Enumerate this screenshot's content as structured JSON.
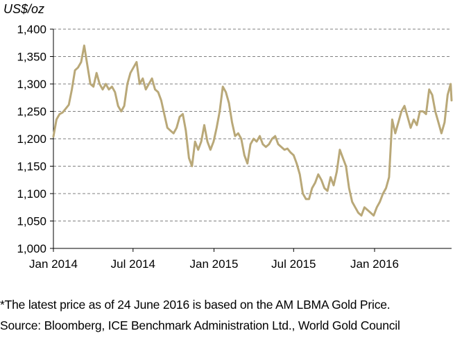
{
  "chart_data": {
    "type": "line",
    "title": "",
    "ylabel": "US$/oz",
    "xlabel": "",
    "ylim": [
      1000,
      1400
    ],
    "y_ticks": [
      1000,
      1050,
      1100,
      1150,
      1200,
      1250,
      1300,
      1350,
      1400
    ],
    "y_tick_labels": [
      "1,000",
      "1,050",
      "1,100",
      "1,150",
      "1,200",
      "1,250",
      "1,300",
      "1,350",
      "1,400"
    ],
    "x_range": [
      "2014-01-01",
      "2016-06-24"
    ],
    "x_ticks": [
      "2014-01-01",
      "2014-07-01",
      "2015-01-01",
      "2015-07-01",
      "2016-01-01"
    ],
    "x_tick_labels": [
      "Jan 2014",
      "Jul 2014",
      "Jan 2015",
      "Jul 2015",
      "Jan 2016"
    ],
    "grid": "horizontal-dashed",
    "line_color": "#B9A878",
    "grid_color": "#7F7F7F",
    "series": [
      {
        "x": [
          "2014-01-01",
          "2014-01-08",
          "2014-01-15",
          "2014-01-22",
          "2014-01-29",
          "2014-02-05",
          "2014-02-12",
          "2014-02-19",
          "2014-02-26",
          "2014-03-05",
          "2014-03-12",
          "2014-03-19",
          "2014-03-26",
          "2014-04-02",
          "2014-04-09",
          "2014-04-16",
          "2014-04-23",
          "2014-04-30",
          "2014-05-07",
          "2014-05-14",
          "2014-05-21",
          "2014-05-28",
          "2014-06-04",
          "2014-06-11",
          "2014-06-18",
          "2014-06-25",
          "2014-07-02",
          "2014-07-09",
          "2014-07-16",
          "2014-07-23",
          "2014-07-30",
          "2014-08-06",
          "2014-08-13",
          "2014-08-20",
          "2014-08-27",
          "2014-09-03",
          "2014-09-10",
          "2014-09-17",
          "2014-09-24",
          "2014-10-01",
          "2014-10-08",
          "2014-10-15",
          "2014-10-22",
          "2014-10-29",
          "2014-11-05",
          "2014-11-12",
          "2014-11-19",
          "2014-11-26",
          "2014-12-03",
          "2014-12-10",
          "2014-12-17",
          "2014-12-24",
          "2014-12-31",
          "2015-01-07",
          "2015-01-14",
          "2015-01-21",
          "2015-01-28",
          "2015-02-04",
          "2015-02-11",
          "2015-02-18",
          "2015-02-25",
          "2015-03-04",
          "2015-03-11",
          "2015-03-18",
          "2015-03-25",
          "2015-04-01",
          "2015-04-08",
          "2015-04-15",
          "2015-04-22",
          "2015-04-29",
          "2015-05-06",
          "2015-05-13",
          "2015-05-20",
          "2015-05-27",
          "2015-06-03",
          "2015-06-10",
          "2015-06-17",
          "2015-06-24",
          "2015-07-01",
          "2015-07-08",
          "2015-07-15",
          "2015-07-22",
          "2015-07-29",
          "2015-08-05",
          "2015-08-12",
          "2015-08-19",
          "2015-08-26",
          "2015-09-02",
          "2015-09-09",
          "2015-09-16",
          "2015-09-23",
          "2015-09-30",
          "2015-10-07",
          "2015-10-14",
          "2015-10-21",
          "2015-10-28",
          "2015-11-04",
          "2015-11-11",
          "2015-11-18",
          "2015-11-25",
          "2015-12-02",
          "2015-12-09",
          "2015-12-16",
          "2015-12-23",
          "2015-12-30",
          "2016-01-06",
          "2016-01-13",
          "2016-01-20",
          "2016-01-27",
          "2016-02-03",
          "2016-02-10",
          "2016-02-17",
          "2016-02-24",
          "2016-03-02",
          "2016-03-09",
          "2016-03-16",
          "2016-03-23",
          "2016-03-30",
          "2016-04-06",
          "2016-04-13",
          "2016-04-20",
          "2016-04-27",
          "2016-05-04",
          "2016-05-11",
          "2016-05-18",
          "2016-05-25",
          "2016-06-01",
          "2016-06-08",
          "2016-06-15",
          "2016-06-22",
          "2016-06-24"
        ],
        "values": [
          1204,
          1235,
          1245,
          1248,
          1255,
          1262,
          1290,
          1325,
          1330,
          1340,
          1370,
          1335,
          1300,
          1295,
          1320,
          1300,
          1290,
          1300,
          1290,
          1295,
          1285,
          1260,
          1250,
          1260,
          1300,
          1320,
          1330,
          1340,
          1300,
          1310,
          1290,
          1300,
          1310,
          1290,
          1285,
          1270,
          1245,
          1220,
          1215,
          1210,
          1220,
          1240,
          1245,
          1215,
          1165,
          1150,
          1195,
          1180,
          1195,
          1225,
          1195,
          1180,
          1195,
          1220,
          1250,
          1295,
          1285,
          1265,
          1230,
          1205,
          1210,
          1200,
          1170,
          1155,
          1190,
          1200,
          1195,
          1205,
          1190,
          1185,
          1190,
          1200,
          1205,
          1190,
          1185,
          1180,
          1182,
          1175,
          1170,
          1155,
          1135,
          1100,
          1090,
          1090,
          1110,
          1120,
          1135,
          1125,
          1110,
          1105,
          1130,
          1115,
          1140,
          1180,
          1165,
          1150,
          1110,
          1085,
          1075,
          1065,
          1060,
          1075,
          1070,
          1065,
          1060,
          1075,
          1085,
          1100,
          1110,
          1130,
          1235,
          1210,
          1230,
          1250,
          1260,
          1240,
          1220,
          1235,
          1225,
          1250,
          1250,
          1245,
          1290,
          1280,
          1250,
          1230,
          1210,
          1230,
          1280,
          1300,
          1270
        ]
      }
    ]
  },
  "notes": {
    "footnote": "*The latest price as of 24 June 2016 is based on the AM LBMA Gold Price.",
    "source": "Source: Bloomberg, ICE Benchmark Administration Ltd., World Gold Council"
  }
}
